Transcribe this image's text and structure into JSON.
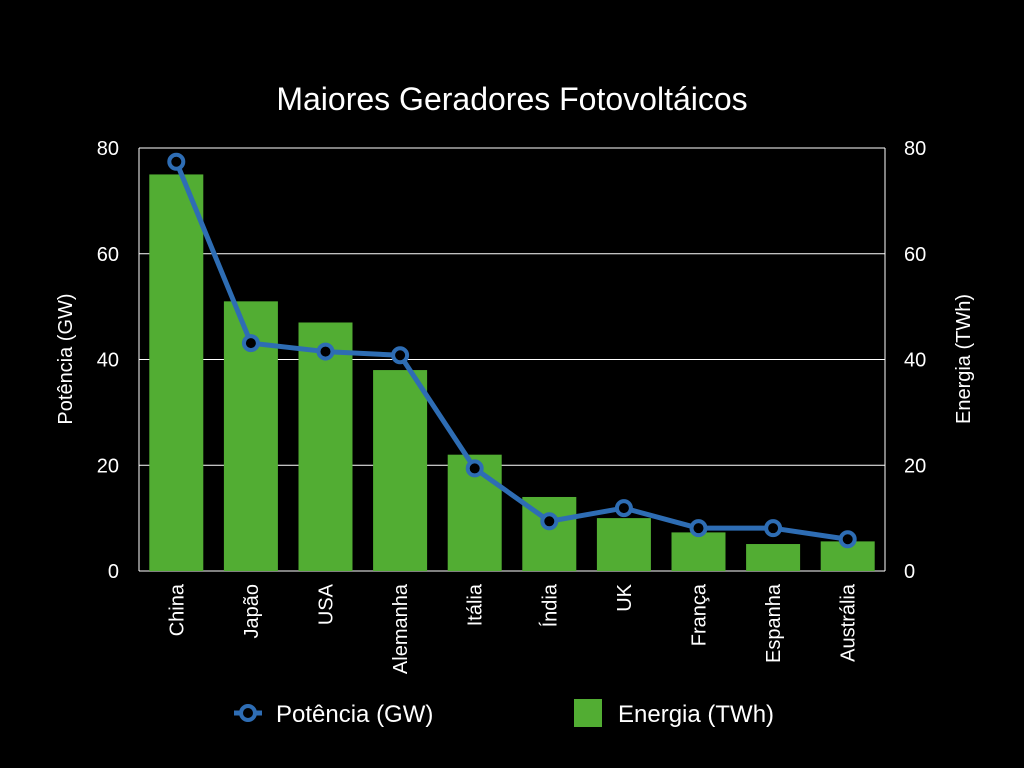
{
  "chart_data": {
    "type": "bar",
    "title": "Maiores Geradores Fotovoltáicos",
    "categories": [
      "China",
      "Japão",
      "USA",
      "Alemanha",
      "Itália",
      "Índia",
      "UK",
      "França",
      "Espanha",
      "Austrália"
    ],
    "series": [
      {
        "name": "Energia (TWh)",
        "type": "bar",
        "axis": "right",
        "color": "#52ad33",
        "values": [
          75,
          51,
          47,
          38,
          22,
          14,
          10,
          7.3,
          5.1,
          5.6
        ]
      },
      {
        "name": "Potência (GW)",
        "type": "line",
        "axis": "left",
        "color": "#2e6db4",
        "values": [
          77.4,
          43.1,
          41.5,
          40.8,
          19.4,
          9.4,
          11.9,
          8.1,
          8.1,
          6.0
        ]
      }
    ],
    "ylabel": "Potência (GW)",
    "y2label": "Energia (TWh)",
    "ylim": [
      0,
      80
    ],
    "y2lim": [
      0,
      80
    ],
    "yticks": [
      0,
      20,
      40,
      60,
      80
    ],
    "y2ticks": [
      0,
      20,
      40,
      60,
      80
    ],
    "grid": true,
    "legend_position": "bottom",
    "colors": {
      "background": "#000000",
      "grid": "#ffffff",
      "text": "#ffffff"
    }
  }
}
